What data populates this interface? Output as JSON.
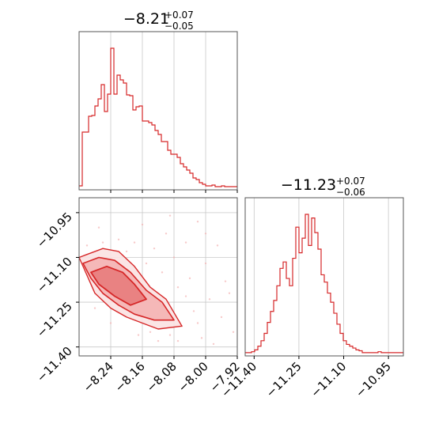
{
  "colors": {
    "series": "#d62728",
    "fill_light": "#f4b3b3",
    "grid": "#c8c8c8",
    "axis": "#555555"
  },
  "chart_data": [
    {
      "type": "histogram",
      "panel": "top-left",
      "title": {
        "main": "−8.21",
        "sup": "+0.07",
        "sub": "−0.05"
      },
      "xlim": [
        -8.32,
        -7.92
      ],
      "ticks": [
        -8.24,
        -8.16,
        -8.08,
        -8.0,
        -7.92
      ],
      "tick_labels": [],
      "grid": true,
      "bins": {
        "start": -8.32,
        "width": 0.008
      },
      "values": [
        2,
        70,
        70,
        90,
        91,
        103,
        112,
        130,
        96,
        118,
        176,
        118,
        142,
        136,
        132,
        117,
        116,
        98,
        102,
        103,
        84,
        84,
        82,
        79,
        72,
        67,
        58,
        58,
        47,
        42,
        42,
        38,
        30,
        26,
        22,
        18,
        12,
        10,
        6,
        4,
        2,
        2,
        3,
        1,
        1,
        2,
        1,
        1,
        1,
        1
      ]
    },
    {
      "type": "contour",
      "panel": "bottom-left",
      "xlim": [
        -8.32,
        -7.92
      ],
      "ylim": [
        -11.43,
        -10.9
      ],
      "x_ticks": [
        -8.24,
        -8.16,
        -8.08,
        -8.0,
        -7.92
      ],
      "x_tick_labels": [
        "−8.24",
        "−8.16",
        "−8.08",
        "−8.00",
        "−7.92"
      ],
      "y_ticks": [
        -10.95,
        -11.1,
        -11.25,
        -11.4
      ],
      "y_tick_labels": [
        "−10.95",
        "−11.10",
        "−11.25",
        "−11.40"
      ],
      "grid": true,
      "levels": [
        {
          "level": "outer",
          "x": [
            -8.32,
            -8.3,
            -8.26,
            -8.22,
            -8.18,
            -8.14,
            -8.1,
            -8.06,
            -8.12,
            -8.16,
            -8.2,
            -8.24,
            -8.28,
            -8.3
          ],
          "y": [
            -11.1,
            -11.09,
            -11.07,
            -11.08,
            -11.13,
            -11.2,
            -11.24,
            -11.33,
            -11.34,
            -11.32,
            -11.3,
            -11.27,
            -11.22,
            -11.16
          ]
        },
        {
          "level": "middle",
          "x": [
            -8.31,
            -8.27,
            -8.23,
            -8.19,
            -8.15,
            -8.11,
            -8.08,
            -8.13,
            -8.18,
            -8.22,
            -8.26,
            -8.29
          ],
          "y": [
            -11.12,
            -11.1,
            -11.11,
            -11.15,
            -11.21,
            -11.25,
            -11.31,
            -11.31,
            -11.29,
            -11.26,
            -11.22,
            -11.17
          ]
        },
        {
          "level": "inner",
          "x": [
            -8.29,
            -8.25,
            -8.21,
            -8.18,
            -8.15,
            -8.19,
            -8.23,
            -8.27
          ],
          "y": [
            -11.15,
            -11.13,
            -11.15,
            -11.19,
            -11.24,
            -11.26,
            -11.23,
            -11.19
          ]
        }
      ],
      "scatter": [
        [
          -8.02,
          -10.98
        ],
        [
          -8.05,
          -11.05
        ],
        [
          -7.97,
          -11.06
        ],
        [
          -8.1,
          -11.02
        ],
        [
          -8.13,
          -11.07
        ],
        [
          -8.0,
          -11.12
        ],
        [
          -7.95,
          -11.18
        ],
        [
          -8.04,
          -11.17
        ],
        [
          -8.07,
          -11.2
        ],
        [
          -7.99,
          -11.24
        ],
        [
          -8.03,
          -11.28
        ],
        [
          -7.96,
          -11.3
        ],
        [
          -8.06,
          -11.33
        ],
        [
          -8.01,
          -11.37
        ],
        [
          -7.98,
          -11.39
        ],
        [
          -8.09,
          -11.36
        ],
        [
          -8.12,
          -11.38
        ],
        [
          -8.08,
          -11.1
        ],
        [
          -8.15,
          -11.12
        ],
        [
          -8.18,
          -11.05
        ],
        [
          -8.22,
          -11.04
        ],
        [
          -8.26,
          -11.05
        ],
        [
          -8.3,
          -11.06
        ],
        [
          -8.2,
          -11.08
        ],
        [
          -8.11,
          -11.15
        ],
        [
          -8.05,
          -11.23
        ],
        [
          -8.02,
          -11.32
        ],
        [
          -8.14,
          -11.35
        ],
        [
          -8.17,
          -11.36
        ],
        [
          -8.24,
          -11.32
        ],
        [
          -8.28,
          -11.27
        ],
        [
          -8.07,
          -11.38
        ],
        [
          -7.94,
          -11.22
        ],
        [
          -8.0,
          -11.02
        ],
        [
          -8.16,
          -10.99
        ],
        [
          -8.09,
          -10.96
        ],
        [
          -8.27,
          -11.0
        ],
        [
          -8.12,
          -11.29
        ],
        [
          -8.19,
          -11.3
        ],
        [
          -7.93,
          -11.35
        ]
      ]
    },
    {
      "type": "histogram",
      "panel": "bottom-right",
      "title": {
        "main": "−11.23",
        "sup": "+0.07",
        "sub": "−0.06"
      },
      "xlim": [
        -11.43,
        -10.9
      ],
      "ticks": [
        -11.4,
        -11.25,
        -11.1,
        -10.95
      ],
      "tick_labels": [
        "−11.40",
        "−11.25",
        "−11.10",
        "−10.95"
      ],
      "grid": true,
      "bins": {
        "start": -11.43,
        "width": 0.0106
      },
      "values": [
        1,
        1,
        2,
        4,
        8,
        14,
        22,
        34,
        46,
        58,
        74,
        93,
        100,
        82,
        74,
        104,
        138,
        110,
        126,
        152,
        118,
        148,
        132,
        114,
        86,
        78,
        66,
        56,
        44,
        32,
        22,
        14,
        10,
        8,
        6,
        4,
        3,
        1,
        1,
        1,
        1,
        1,
        2,
        1,
        1,
        1,
        1,
        1,
        1,
        1
      ]
    }
  ]
}
